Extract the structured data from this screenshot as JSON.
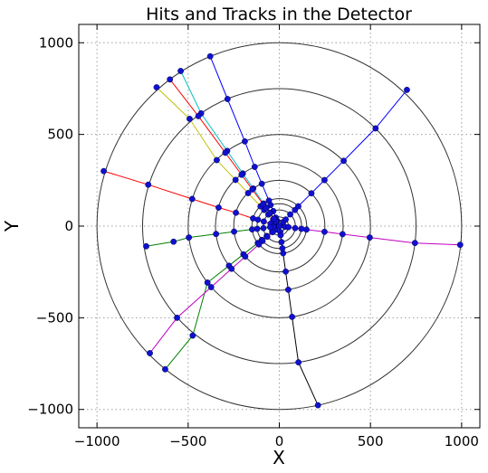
{
  "chart_data": {
    "type": "scatter",
    "title": "Hits and Tracks in the Detector",
    "xlabel": "X",
    "ylabel": "Y",
    "xlim": [
      -1100,
      1100
    ],
    "ylim": [
      -1100,
      1100
    ],
    "xticks": [
      -1000,
      -500,
      0,
      500,
      1000
    ],
    "yticks": [
      -1000,
      -500,
      0,
      500,
      1000
    ],
    "xtick_labels": [
      "−1000",
      "−500",
      "0",
      "500",
      "1000"
    ],
    "ytick_labels": [
      "−1000",
      "−500",
      "0",
      "500",
      "1000"
    ],
    "grid": true,
    "detector_layer_radii": [
      32,
      50,
      88,
      122,
      150,
      250,
      350,
      500,
      750,
      1000
    ],
    "hit_color": "#1010d0",
    "tracks": [
      {
        "color": "#0000ff",
        "points": [
          [
            0,
            0
          ],
          [
            -12,
            29
          ],
          [
            -19,
            46
          ],
          [
            -33,
            82
          ],
          [
            -48,
            115
          ],
          [
            -57,
            139
          ],
          [
            -96,
            231
          ],
          [
            -135,
            323
          ],
          [
            -189,
            462
          ],
          [
            -284,
            693
          ],
          [
            -379,
            926
          ]
        ]
      },
      {
        "color": "#0000ff",
        "points": [
          [
            0,
            0
          ],
          [
            21,
            22
          ],
          [
            35,
            36
          ],
          [
            60,
            64
          ],
          [
            86,
            88
          ],
          [
            104,
            108
          ],
          [
            176,
            179
          ],
          [
            248,
            251
          ],
          [
            353,
            356
          ],
          [
            528,
            533
          ],
          [
            700,
            743
          ]
        ]
      },
      {
        "color": "#ff0000",
        "points": [
          [
            0,
            0
          ],
          [
            -31,
            9
          ],
          [
            -48,
            13
          ],
          [
            -85,
            25
          ],
          [
            -117,
            35
          ],
          [
            -144,
            42
          ],
          [
            -238,
            73
          ],
          [
            -333,
            101
          ],
          [
            -478,
            148
          ],
          [
            -719,
            226
          ],
          [
            -963,
            300
          ]
        ]
      },
      {
        "color": "#c000c0",
        "points": [
          [
            0,
            0
          ],
          [
            31,
            -4
          ],
          [
            50,
            -6
          ],
          [
            87,
            -11
          ],
          [
            121,
            -15
          ],
          [
            149,
            -19
          ],
          [
            248,
            -31
          ],
          [
            347,
            -44
          ],
          [
            496,
            -62
          ],
          [
            744,
            -92
          ],
          [
            992,
            -102
          ]
        ]
      },
      {
        "color": "#000000",
        "points": [
          [
            0,
            0
          ],
          [
            5,
            -32
          ],
          [
            7,
            -50
          ],
          [
            12,
            -87
          ],
          [
            17,
            -121
          ],
          [
            21,
            -148
          ],
          [
            35,
            -248
          ],
          [
            49,
            -347
          ],
          [
            70,
            -495
          ],
          [
            105,
            -743
          ],
          [
            212,
            -977
          ]
        ]
      },
      {
        "color": "#008000",
        "points": [
          [
            0,
            0
          ],
          [
            -25,
            -20
          ],
          [
            -39,
            -31
          ],
          [
            -69,
            -54
          ],
          [
            -96,
            -75
          ],
          [
            -118,
            -92
          ],
          [
            -197,
            -154
          ],
          [
            -276,
            -216
          ],
          [
            -394,
            -308
          ],
          [
            -475,
            -597
          ],
          [
            -626,
            -781
          ]
        ]
      },
      {
        "color": "#c000c0",
        "points": [
          [
            0,
            0
          ],
          [
            -24,
            -21
          ],
          [
            -37,
            -33
          ],
          [
            -66,
            -58
          ],
          [
            -92,
            -81
          ],
          [
            -112,
            -100
          ],
          [
            -187,
            -166
          ],
          [
            -262,
            -233
          ],
          [
            -374,
            -333
          ],
          [
            -561,
            -500
          ],
          [
            -710,
            -693
          ]
        ]
      },
      {
        "color": "#008000",
        "points": [
          [
            0,
            0
          ],
          [
            -32,
            -4
          ],
          [
            -50,
            -6
          ],
          [
            -87,
            -11
          ],
          [
            -121,
            -15
          ],
          [
            -149,
            -18
          ],
          [
            -248,
            -30
          ],
          [
            -347,
            -43
          ],
          [
            -496,
            -62
          ],
          [
            -580,
            -85
          ],
          [
            -730,
            -110
          ]
        ]
      },
      {
        "color": "#00bfbf",
        "points": [
          [
            0,
            0
          ],
          [
            -18,
            26
          ],
          [
            -28,
            41
          ],
          [
            -50,
            72
          ],
          [
            -70,
            100
          ],
          [
            -86,
            123
          ],
          [
            -143,
            205
          ],
          [
            -200,
            287
          ],
          [
            -286,
            410
          ],
          [
            -429,
            615
          ],
          [
            -541,
            846
          ]
        ]
      },
      {
        "color": "#bfbf00",
        "points": [
          [
            0,
            0
          ],
          [
            -22,
            23
          ],
          [
            -34,
            36
          ],
          [
            -60,
            63
          ],
          [
            -83,
            88
          ],
          [
            -103,
            108
          ],
          [
            -171,
            180
          ],
          [
            -240,
            252
          ],
          [
            -343,
            360
          ],
          [
            -492,
            585
          ],
          [
            -673,
            757
          ]
        ]
      },
      {
        "color": "#ff0000",
        "points": [
          [
            0,
            0
          ],
          [
            -19,
            26
          ],
          [
            -30,
            40
          ],
          [
            -52,
            70
          ],
          [
            -72,
            98
          ],
          [
            -89,
            120
          ],
          [
            -148,
            200
          ],
          [
            -207,
            280
          ],
          [
            -296,
            400
          ],
          [
            -444,
            600
          ],
          [
            -600,
            800
          ]
        ]
      }
    ]
  }
}
